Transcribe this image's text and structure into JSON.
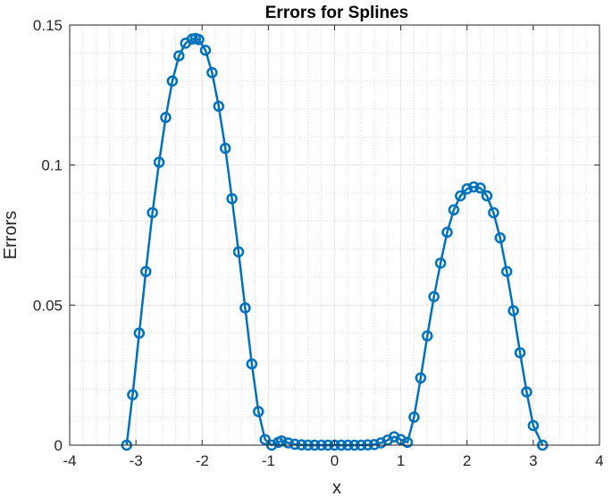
{
  "chart_data": {
    "type": "line",
    "title": "Errors for Splines",
    "xlabel": "x",
    "ylabel": "Errors",
    "xlim": [
      -4,
      4
    ],
    "ylim": [
      0,
      0.15
    ],
    "xticks": [
      "-4",
      "-3",
      "-2",
      "-1",
      "0",
      "1",
      "2",
      "3",
      "4"
    ],
    "yticks": [
      "0",
      "0.05",
      "0.1",
      "0.15"
    ],
    "grid": "major and minor (dotted)",
    "series": [
      {
        "color": "#0072BD",
        "marker": "circle",
        "x": [
          -3.14,
          -3.05,
          -2.95,
          -2.85,
          -2.75,
          -2.65,
          -2.55,
          -2.45,
          -2.35,
          -2.25,
          -2.15,
          -2.1,
          -2.05,
          -1.95,
          -1.85,
          -1.75,
          -1.65,
          -1.55,
          -1.45,
          -1.35,
          -1.25,
          -1.15,
          -1.05,
          -0.95,
          -0.85,
          -0.8,
          -0.7,
          -0.6,
          -0.5,
          -0.4,
          -0.3,
          -0.2,
          -0.1,
          0.0,
          0.1,
          0.2,
          0.3,
          0.4,
          0.5,
          0.6,
          0.7,
          0.8,
          0.9,
          1.0,
          1.1,
          1.2,
          1.3,
          1.4,
          1.5,
          1.6,
          1.7,
          1.8,
          1.9,
          2.0,
          2.1,
          2.2,
          2.3,
          2.4,
          2.5,
          2.6,
          2.7,
          2.8,
          2.9,
          3.0,
          3.14
        ],
        "y": [
          0.0,
          0.018,
          0.04,
          0.062,
          0.083,
          0.101,
          0.117,
          0.13,
          0.139,
          0.1435,
          0.145,
          0.1452,
          0.1448,
          0.141,
          0.133,
          0.121,
          0.106,
          0.088,
          0.069,
          0.049,
          0.029,
          0.012,
          0.002,
          0.0,
          0.001,
          0.0015,
          0.0008,
          0.0003,
          0.0001,
          0.0,
          0.0,
          0.0,
          0.0,
          0.0,
          0.0,
          0.0,
          0.0,
          0.0,
          0.0001,
          0.0002,
          0.0008,
          0.0018,
          0.003,
          0.002,
          0.001,
          0.01,
          0.024,
          0.039,
          0.053,
          0.065,
          0.076,
          0.084,
          0.089,
          0.0915,
          0.0922,
          0.0918,
          0.089,
          0.083,
          0.074,
          0.062,
          0.048,
          0.033,
          0.019,
          0.007,
          0.0
        ]
      }
    ]
  }
}
